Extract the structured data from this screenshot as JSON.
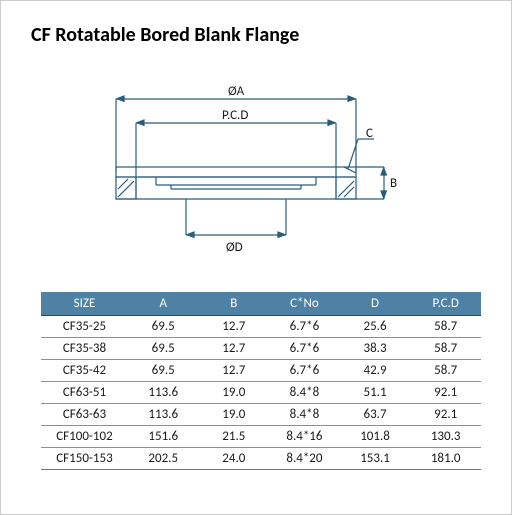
{
  "title": "CF Rotatable Bored Blank Flange",
  "diagram": {
    "labels": {
      "oa": "ØA",
      "pcd": "P.C.D",
      "od": "ØD",
      "b": "B",
      "c": "C"
    },
    "stroke": "#2a5c7a",
    "stroke_width": 1.2
  },
  "table": {
    "header_bg": "#4f81a4",
    "header_fg": "#ffffff",
    "border_color": "#6b9ab5",
    "columns": [
      "SIZE",
      "A",
      "B",
      "C*No",
      "D",
      "P.C.D"
    ],
    "rows": [
      [
        "CF35-25",
        "69.5",
        "12.7",
        "6.7*6",
        "25.6",
        "58.7"
      ],
      [
        "CF35-38",
        "69.5",
        "12.7",
        "6.7*6",
        "38.3",
        "58.7"
      ],
      [
        "CF35-42",
        "69.5",
        "12.7",
        "6.7*6",
        "42.9",
        "58.7"
      ],
      [
        "CF63-51",
        "113.6",
        "19.0",
        "8.4*8",
        "51.1",
        "92.1"
      ],
      [
        "CF63-63",
        "113.6",
        "19.0",
        "8.4*8",
        "63.7",
        "92.1"
      ],
      [
        "CF100-102",
        "151.6",
        "21.5",
        "8.4*16",
        "101.8",
        "130.3"
      ],
      [
        "CF150-153",
        "202.5",
        "24.0",
        "8.4*20",
        "153.1",
        "181.0"
      ]
    ]
  }
}
